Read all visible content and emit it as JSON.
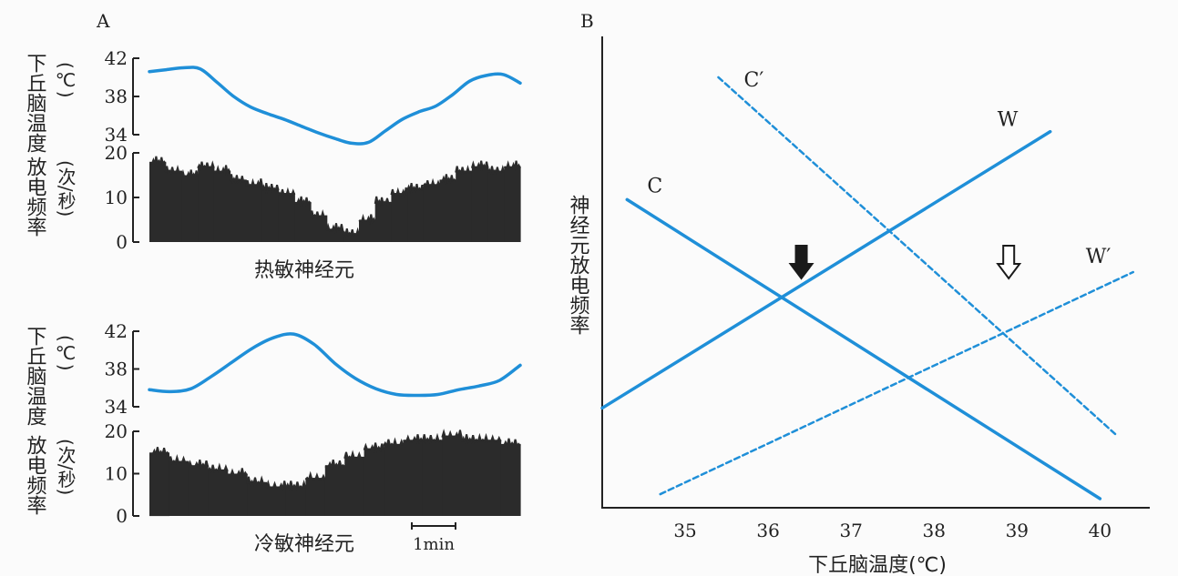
{
  "panel_a_label": "A",
  "panel_b_label": "B",
  "chart_data": [
    {
      "type": "line",
      "panel": "A",
      "title": "热敏神经元",
      "ylabel": "下丘脑温度",
      "yunit": "(℃)",
      "yticks": [
        34,
        38,
        42
      ],
      "ylim": [
        34,
        42
      ],
      "series": [
        {
          "values": [
            40.6,
            40.8,
            41.0,
            40.9,
            39.5,
            38.0,
            36.9,
            36.2,
            35.6,
            34.9,
            34.2,
            33.6,
            33.1,
            33.2,
            34.4,
            35.6,
            36.4,
            37.0,
            38.2,
            39.6,
            40.2,
            40.3,
            39.4
          ],
          "color": "#1f8fd8"
        }
      ]
    },
    {
      "type": "bar",
      "panel": "A",
      "ylabel": "放电频率",
      "yunit": "(次/秒)",
      "yticks": [
        0,
        10,
        20
      ],
      "ylim": [
        0,
        20
      ],
      "values": [
        18,
        16,
        15,
        17,
        16,
        14,
        13,
        12,
        11,
        9,
        6,
        3,
        2,
        5,
        9,
        11,
        12,
        13,
        14,
        16,
        17,
        16,
        17
      ],
      "color": "#2b2b2b"
    },
    {
      "type": "line",
      "panel": "A",
      "title": "冷敏神经元",
      "ylabel": "下丘脑温度",
      "yunit": "(℃)",
      "yticks": [
        34,
        38,
        42
      ],
      "ylim": [
        34,
        42
      ],
      "scale_bar": "1min",
      "series": [
        {
          "values": [
            35.8,
            35.6,
            35.9,
            37.2,
            38.7,
            40.2,
            41.3,
            41.7,
            40.6,
            38.6,
            37.0,
            35.9,
            35.3,
            35.2,
            35.3,
            35.8,
            36.2,
            36.8,
            38.4
          ],
          "color": "#1f8fd8"
        }
      ]
    },
    {
      "type": "bar",
      "panel": "A",
      "ylabel": "放电频率",
      "yunit": "(次/秒)",
      "yticks": [
        0,
        10,
        20
      ],
      "ylim": [
        0,
        20
      ],
      "values": [
        15,
        13,
        12,
        11,
        10,
        8,
        7,
        7,
        9,
        12,
        14,
        16,
        17,
        18,
        18,
        19,
        18,
        18,
        17
      ],
      "color": "#2b2b2b"
    },
    {
      "type": "line",
      "panel": "B",
      "xlabel": "下丘脑温度(℃)",
      "ylabel": "神经元放电频率",
      "xticks": [
        35,
        36,
        37,
        38,
        39,
        40
      ],
      "xlim": [
        34.0,
        40.6
      ],
      "ylim": [
        0,
        100
      ],
      "series": [
        {
          "name": "C",
          "style": "solid",
          "x": [
            34.3,
            40.0
          ],
          "y": [
            68,
            2
          ],
          "color": "#1f8fd8"
        },
        {
          "name": "W",
          "style": "solid",
          "x": [
            34.0,
            39.4
          ],
          "y": [
            22,
            83
          ],
          "color": "#1f8fd8"
        },
        {
          "name": "C′",
          "style": "dashed",
          "x": [
            35.4,
            40.2
          ],
          "y": [
            95,
            16
          ],
          "color": "#1f8fd8"
        },
        {
          "name": "W′",
          "style": "dashed",
          "x": [
            34.7,
            40.4
          ],
          "y": [
            3,
            52
          ],
          "color": "#1f8fd8"
        }
      ],
      "annotations": [
        {
          "type": "solid-arrow-down",
          "x": 36.4
        },
        {
          "type": "hollow-arrow-down",
          "x": 38.9
        }
      ]
    }
  ]
}
